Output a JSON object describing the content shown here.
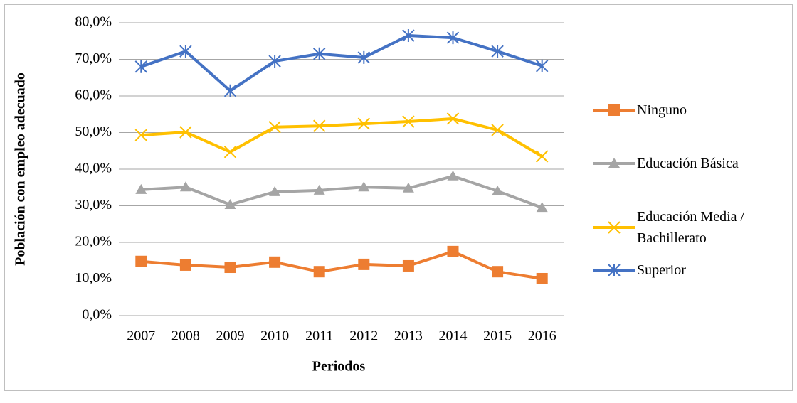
{
  "chart_data": {
    "type": "line",
    "x_label": "Periodos",
    "y_label": "Población con empleo adecuado",
    "categories": [
      "2007",
      "2008",
      "2009",
      "2010",
      "2011",
      "2012",
      "2013",
      "2014",
      "2015",
      "2016"
    ],
    "series": [
      {
        "name": "Ninguno",
        "color": "#ED7D31",
        "marker": "square",
        "values": [
          14.8,
          13.8,
          13.2,
          14.6,
          12.0,
          14.0,
          13.6,
          17.5,
          12.0,
          10.1
        ]
      },
      {
        "name": "Educación Básica",
        "color": "#A5A5A5",
        "marker": "triangle",
        "values": [
          34.4,
          35.1,
          30.3,
          33.8,
          34.2,
          35.1,
          34.8,
          38.1,
          34.0,
          29.5
        ]
      },
      {
        "name": "Educación Media / Bachillerato",
        "color": "#FFC000",
        "marker": "x",
        "values": [
          49.3,
          50.1,
          44.7,
          51.5,
          51.8,
          52.4,
          53.0,
          53.8,
          50.7,
          43.5
        ]
      },
      {
        "name": "Superior",
        "color": "#4472C4",
        "marker": "asterisk",
        "values": [
          68.0,
          72.2,
          61.4,
          69.5,
          71.5,
          70.5,
          76.5,
          75.9,
          72.2,
          68.2
        ]
      }
    ],
    "ylim": [
      0,
      80
    ],
    "yticks": [
      {
        "value": 0,
        "label": "0,0%"
      },
      {
        "value": 10,
        "label": "10,0%"
      },
      {
        "value": 20,
        "label": "20,0%"
      },
      {
        "value": 30,
        "label": "30,0%"
      },
      {
        "value": 40,
        "label": "40,0%"
      },
      {
        "value": 50,
        "label": "50,0%"
      },
      {
        "value": 60,
        "label": "60,0%"
      },
      {
        "value": 70,
        "label": "70,0%"
      },
      {
        "value": 80,
        "label": "80,0%"
      }
    ],
    "grid": true,
    "legend": "right"
  }
}
